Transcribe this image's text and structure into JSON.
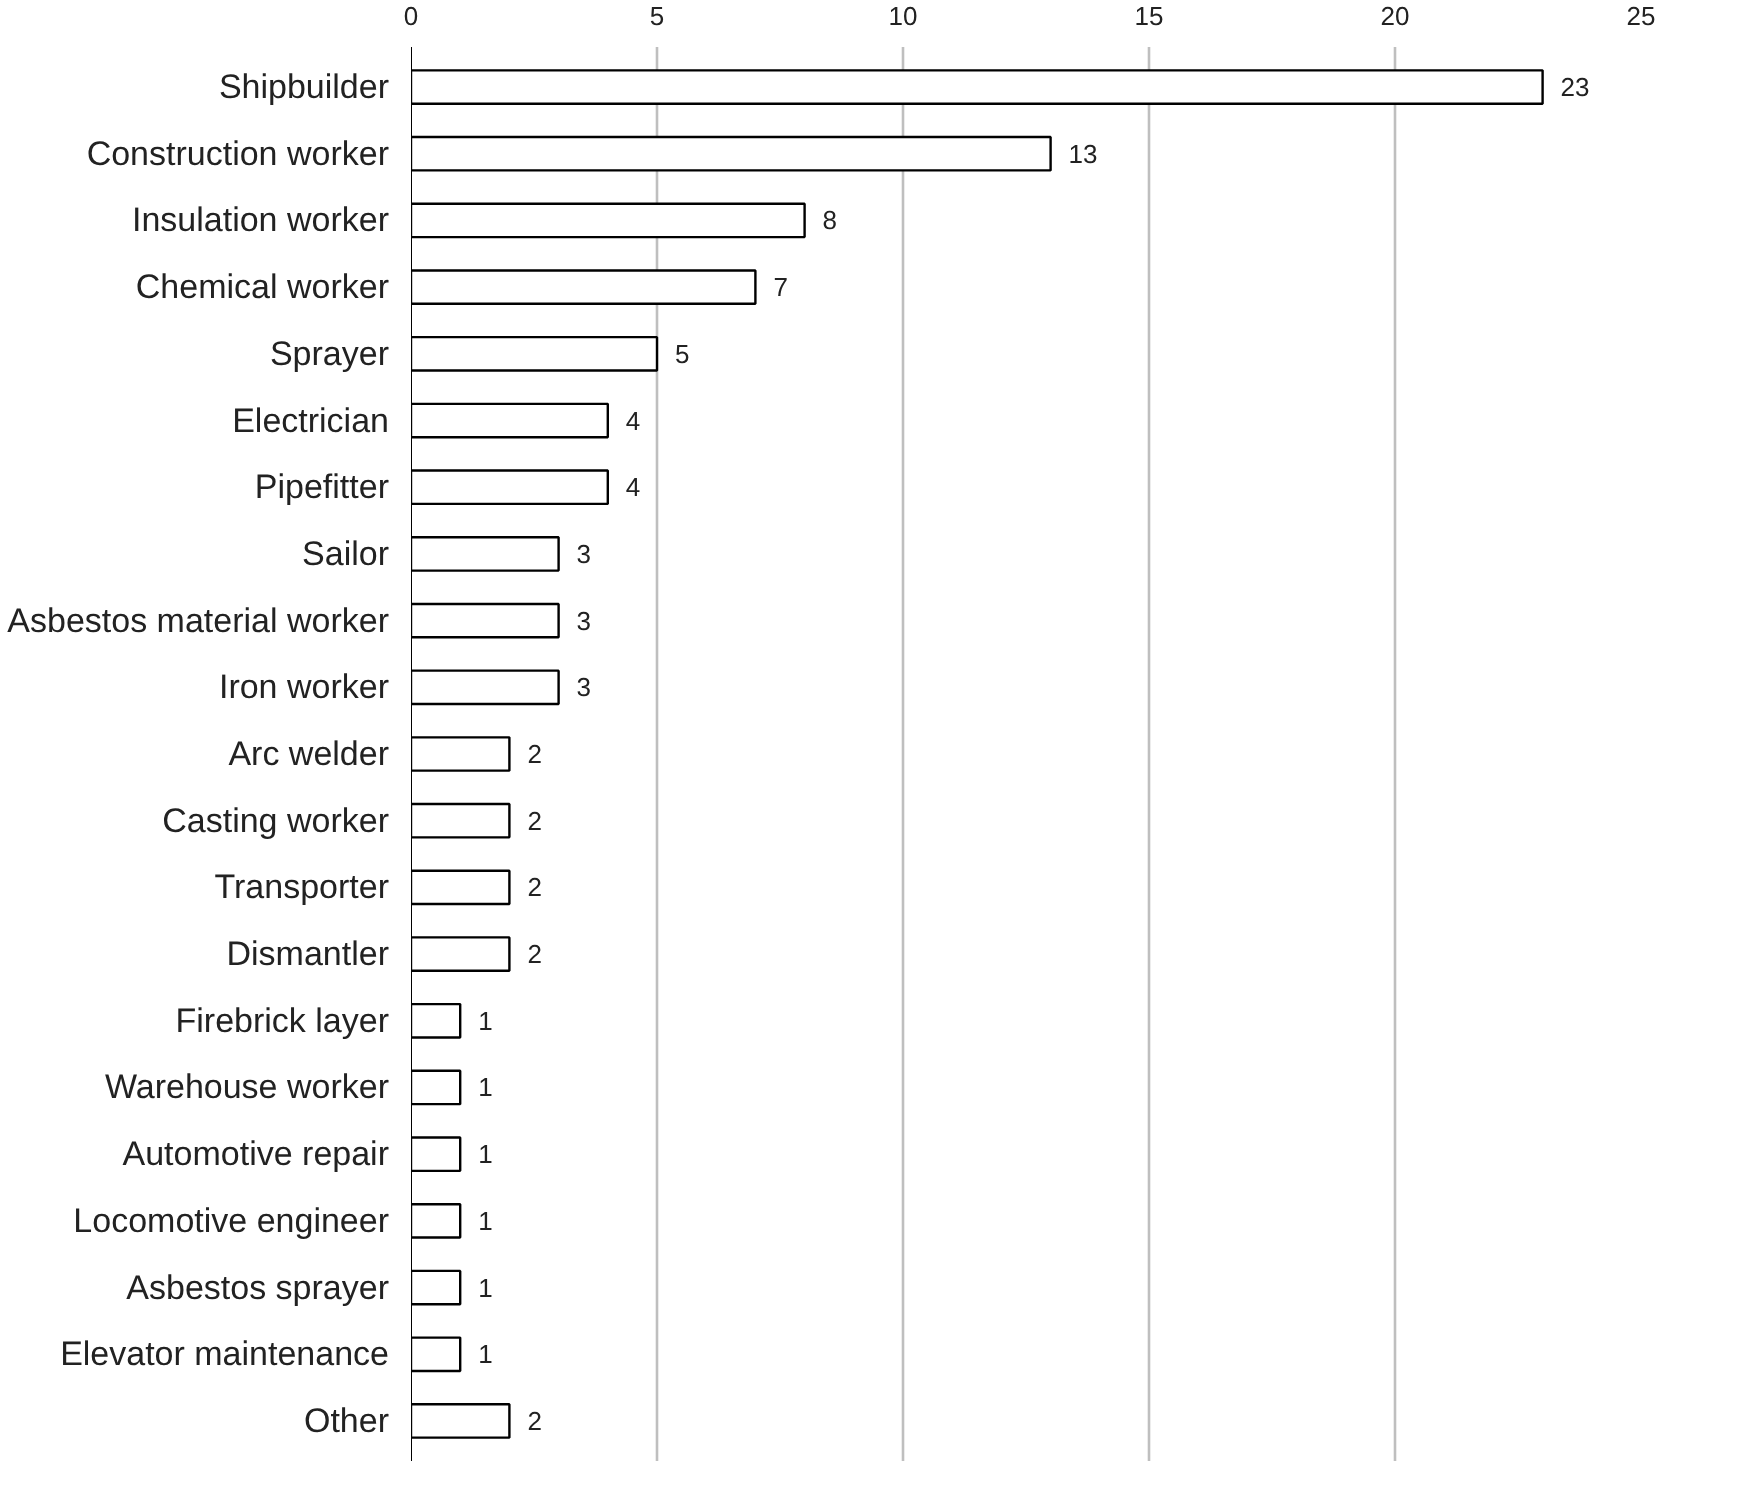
{
  "chart_data": {
    "type": "bar",
    "orientation": "horizontal",
    "categories": [
      "Shipbuilder",
      "Construction worker",
      "Insulation worker",
      "Chemical worker",
      "Sprayer",
      "Electrician",
      "Pipefitter",
      "Sailor",
      "Asbestos material worker",
      "Iron worker",
      "Arc welder",
      "Casting worker",
      "Transporter",
      "Dismantler",
      "Firebrick layer",
      "Warehouse worker",
      "Automotive repair",
      "Locomotive engineer",
      "Asbestos sprayer",
      "Elevator maintenance",
      "Other"
    ],
    "values": [
      23,
      13,
      8,
      7,
      5,
      4,
      4,
      3,
      3,
      3,
      2,
      2,
      2,
      2,
      1,
      1,
      1,
      1,
      1,
      1,
      2
    ],
    "color": "#ffffff",
    "xlim": [
      0,
      25
    ],
    "xticks": [
      0,
      5,
      10,
      15,
      20,
      25
    ],
    "grid": "x",
    "data_labels": true
  }
}
